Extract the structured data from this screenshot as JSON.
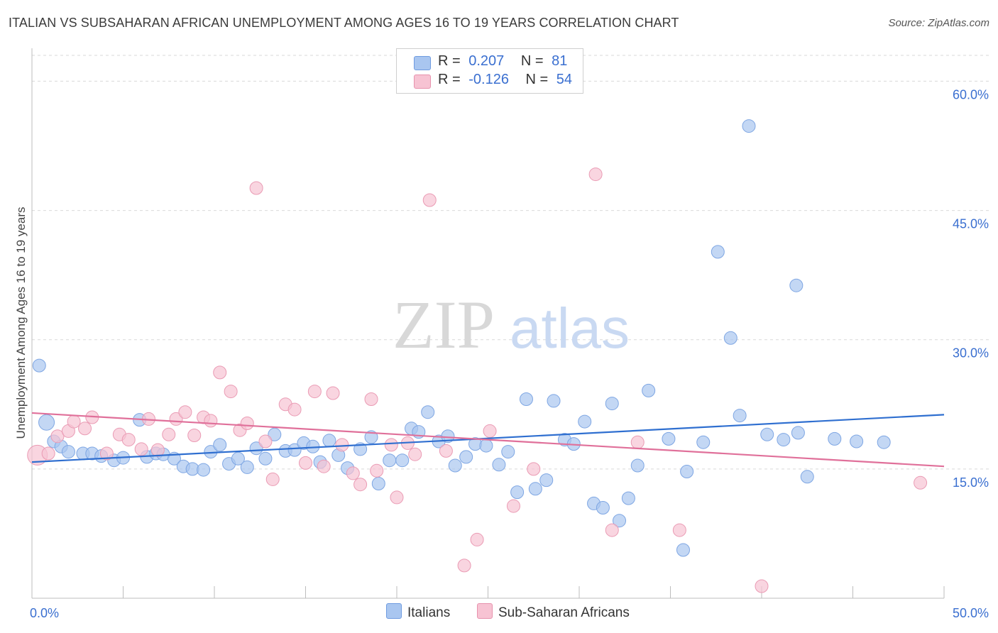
{
  "title": "ITALIAN VS SUBSAHARAN AFRICAN UNEMPLOYMENT AMONG AGES 16 TO 19 YEARS CORRELATION CHART",
  "source": "Source: ZipAtlas.com",
  "watermark": {
    "zip": "ZIP",
    "atlas": "atlas"
  },
  "legend": {
    "rows": [
      {
        "r_label": "R =",
        "r_value": "0.207",
        "n_label": "N =",
        "n_value": "81",
        "color": "#a9c6f0",
        "stroke": "#6f9be0"
      },
      {
        "r_label": "R =",
        "r_value": "-0.126",
        "n_label": "N =",
        "n_value": "54",
        "color": "#f7c3d3",
        "stroke": "#e792ad"
      }
    ]
  },
  "bottom_legend": {
    "italians": "Italians",
    "subsaharan": "Sub-Saharan Africans"
  },
  "colors": {
    "blue_fill": "#a9c6f0",
    "blue_stroke": "#7ea6e3",
    "blue_line": "#2f6fd0",
    "pink_fill": "#f7c3d3",
    "pink_stroke": "#ea9bb4",
    "pink_line": "#e0709a",
    "tick_label": "#3a6fd0",
    "grid": "#d9d9d9"
  },
  "chart_data": {
    "type": "scatter",
    "title": "ITALIAN VS SUBSAHARAN AFRICAN UNEMPLOYMENT AMONG AGES 16 TO 19 YEARS CORRELATION CHART",
    "xlabel": "",
    "ylabel": "Unemployment Among Ages 16 to 19 years",
    "xlim": [
      0,
      50
    ],
    "ylim": [
      0,
      63
    ],
    "x_tick_labels": [
      "0.0%",
      "50.0%"
    ],
    "y_ticks": [
      15,
      30,
      45,
      60
    ],
    "y_tick_labels": [
      "15.0%",
      "30.0%",
      "45.0%",
      "60.0%"
    ],
    "series": [
      {
        "name": "Italians",
        "trend": {
          "x": [
            0,
            50
          ],
          "y": [
            15.8,
            21.3
          ]
        },
        "points": [
          [
            0.4,
            27.0
          ],
          [
            0.8,
            20.4
          ],
          [
            1.2,
            18.2
          ],
          [
            1.6,
            17.6
          ],
          [
            2.0,
            17.0
          ],
          [
            2.8,
            16.8
          ],
          [
            3.3,
            16.8
          ],
          [
            3.8,
            16.5
          ],
          [
            4.5,
            16.0
          ],
          [
            5.0,
            16.3
          ],
          [
            5.9,
            20.7
          ],
          [
            6.3,
            16.4
          ],
          [
            6.8,
            16.8
          ],
          [
            7.2,
            16.7
          ],
          [
            7.8,
            16.2
          ],
          [
            8.3,
            15.3
          ],
          [
            8.8,
            15.0
          ],
          [
            9.4,
            14.9
          ],
          [
            9.8,
            17.0
          ],
          [
            10.3,
            17.8
          ],
          [
            10.8,
            15.6
          ],
          [
            11.3,
            16.2
          ],
          [
            11.8,
            15.2
          ],
          [
            12.3,
            17.4
          ],
          [
            12.8,
            16.2
          ],
          [
            13.3,
            19.0
          ],
          [
            13.9,
            17.1
          ],
          [
            14.4,
            17.2
          ],
          [
            14.9,
            18.0
          ],
          [
            15.4,
            17.6
          ],
          [
            15.8,
            15.8
          ],
          [
            16.3,
            18.3
          ],
          [
            16.8,
            16.6
          ],
          [
            17.3,
            15.1
          ],
          [
            18.0,
            17.3
          ],
          [
            18.6,
            18.7
          ],
          [
            19.0,
            13.3
          ],
          [
            19.6,
            16.0
          ],
          [
            20.3,
            16.0
          ],
          [
            20.8,
            19.7
          ],
          [
            21.2,
            19.3
          ],
          [
            21.7,
            21.6
          ],
          [
            22.3,
            18.2
          ],
          [
            22.8,
            18.8
          ],
          [
            23.2,
            15.4
          ],
          [
            23.8,
            16.4
          ],
          [
            24.3,
            17.9
          ],
          [
            24.9,
            17.7
          ],
          [
            25.6,
            15.5
          ],
          [
            26.1,
            17.0
          ],
          [
            26.6,
            12.3
          ],
          [
            27.1,
            23.1
          ],
          [
            27.6,
            12.7
          ],
          [
            28.2,
            13.7
          ],
          [
            28.6,
            22.9
          ],
          [
            29.2,
            18.4
          ],
          [
            29.7,
            17.9
          ],
          [
            30.3,
            20.5
          ],
          [
            30.8,
            11.0
          ],
          [
            31.3,
            10.5
          ],
          [
            31.8,
            22.6
          ],
          [
            32.2,
            9.0
          ],
          [
            32.7,
            11.6
          ],
          [
            33.2,
            15.4
          ],
          [
            33.8,
            24.1
          ],
          [
            34.9,
            18.5
          ],
          [
            35.7,
            5.6
          ],
          [
            35.9,
            14.7
          ],
          [
            36.8,
            18.1
          ],
          [
            37.6,
            40.2
          ],
          [
            38.3,
            30.2
          ],
          [
            38.8,
            21.2
          ],
          [
            39.3,
            54.8
          ],
          [
            40.3,
            19.0
          ],
          [
            41.2,
            18.4
          ],
          [
            41.9,
            36.3
          ],
          [
            42.5,
            14.1
          ],
          [
            44.0,
            18.5
          ],
          [
            45.2,
            18.2
          ],
          [
            46.7,
            18.1
          ],
          [
            42.0,
            19.2
          ]
        ]
      },
      {
        "name": "Sub-Saharan Africans",
        "trend": {
          "x": [
            0,
            50
          ],
          "y": [
            21.5,
            15.3
          ]
        },
        "points": [
          [
            0.3,
            16.6
          ],
          [
            0.9,
            16.8
          ],
          [
            1.4,
            18.8
          ],
          [
            2.0,
            19.4
          ],
          [
            2.3,
            20.5
          ],
          [
            2.9,
            19.7
          ],
          [
            3.3,
            21.0
          ],
          [
            4.1,
            16.8
          ],
          [
            4.8,
            19.0
          ],
          [
            5.3,
            18.4
          ],
          [
            6.0,
            17.3
          ],
          [
            6.4,
            20.8
          ],
          [
            6.9,
            17.2
          ],
          [
            7.5,
            19.0
          ],
          [
            7.9,
            20.8
          ],
          [
            8.4,
            21.6
          ],
          [
            8.9,
            18.9
          ],
          [
            9.4,
            21.0
          ],
          [
            9.8,
            20.6
          ],
          [
            10.3,
            26.2
          ],
          [
            10.9,
            24.0
          ],
          [
            11.4,
            19.5
          ],
          [
            11.8,
            20.3
          ],
          [
            12.3,
            47.6
          ],
          [
            12.8,
            18.2
          ],
          [
            13.2,
            13.8
          ],
          [
            13.9,
            22.5
          ],
          [
            14.4,
            21.9
          ],
          [
            15.0,
            15.7
          ],
          [
            15.5,
            24.0
          ],
          [
            16.0,
            15.3
          ],
          [
            16.5,
            23.8
          ],
          [
            17.0,
            17.8
          ],
          [
            17.6,
            14.5
          ],
          [
            18.0,
            13.2
          ],
          [
            18.6,
            23.1
          ],
          [
            18.9,
            14.8
          ],
          [
            19.7,
            17.8
          ],
          [
            20.0,
            11.7
          ],
          [
            20.6,
            18.0
          ],
          [
            21.0,
            16.7
          ],
          [
            21.8,
            46.2
          ],
          [
            22.7,
            17.1
          ],
          [
            23.7,
            3.8
          ],
          [
            24.4,
            6.8
          ],
          [
            26.4,
            10.7
          ],
          [
            27.5,
            15.0
          ],
          [
            30.9,
            49.2
          ],
          [
            31.8,
            7.9
          ],
          [
            33.2,
            18.1
          ],
          [
            35.5,
            7.9
          ],
          [
            40.0,
            1.4
          ],
          [
            48.7,
            13.4
          ],
          [
            25.1,
            19.4
          ]
        ]
      }
    ]
  }
}
